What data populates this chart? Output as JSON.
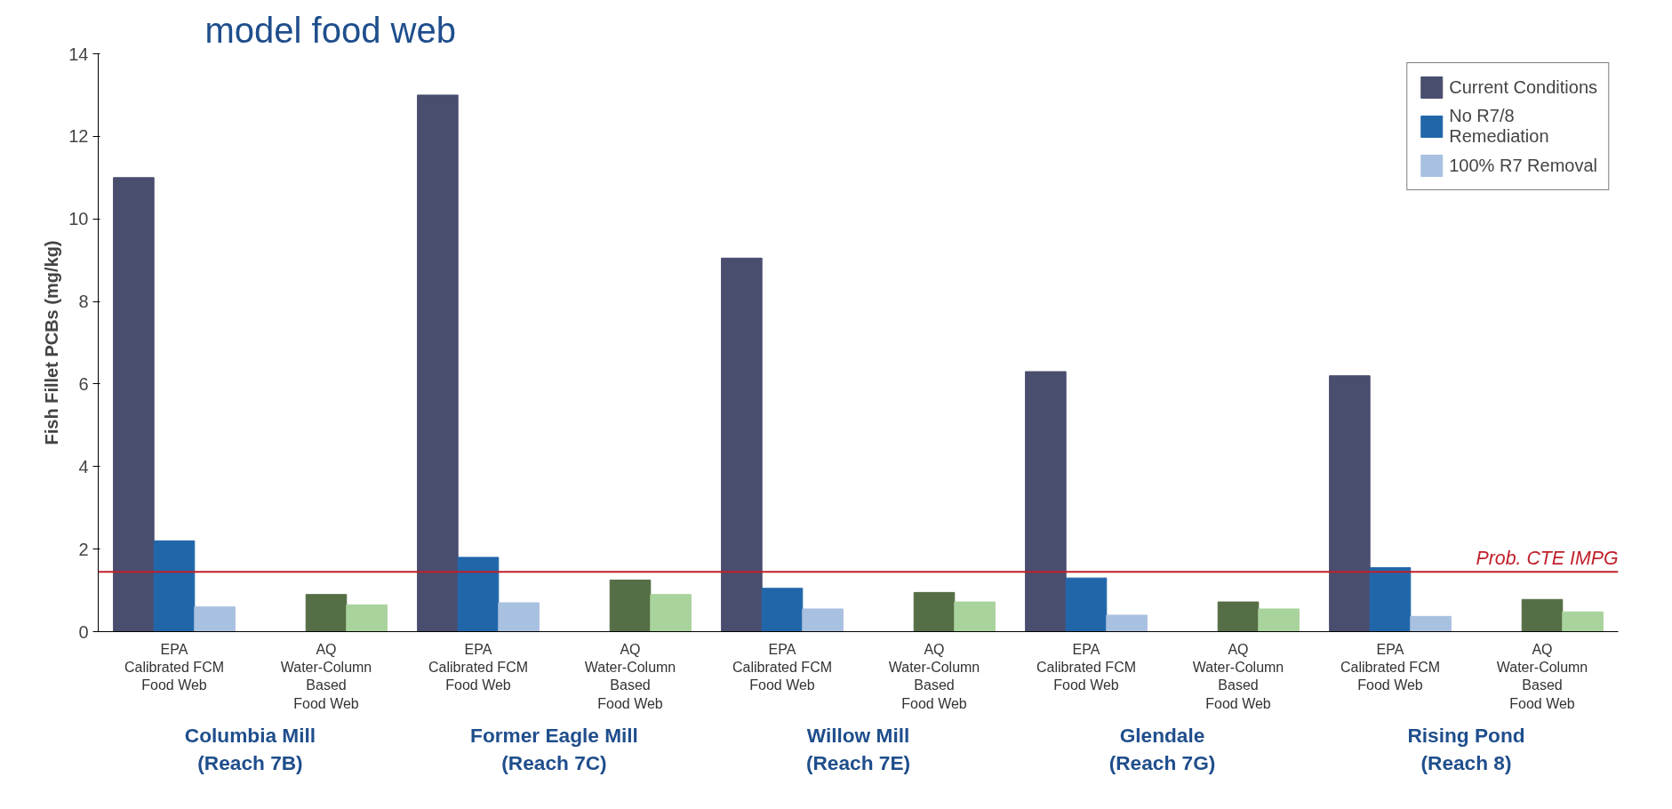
{
  "chart_data": {
    "type": "bar",
    "title": "model food web",
    "ylabel": "Fish Fillet PCBs (mg/kg)",
    "categories": [
      "EPA\nCalibrated FCM\nFood Web",
      "AQ\nWater-Column\nBased\nFood Web",
      "EPA\nCalibrated FCM\nFood Web",
      "AQ\nWater-Column\nBased\nFood Web",
      "EPA\nCalibrated FCM\nFood Web",
      "AQ\nWater-Column\nBased\nFood Web",
      "EPA\nCalibrated FCM\nFood Web",
      "AQ\nWater-Column\nBased\nFood Web",
      "EPA\nCalibrated FCM\nFood Web",
      "AQ\nWater-Column\nBased\nFood Web"
    ],
    "series": [
      {
        "name": "Current Conditions",
        "color": "#4a4e6e",
        "values": [
          11.0,
          null,
          13.0,
          null,
          9.05,
          null,
          6.3,
          null,
          6.2,
          null
        ]
      },
      {
        "name": "No R7/8\nRemediation",
        "colors": [
          "#2266aa",
          "#556e45",
          "#2266aa",
          "#556e45",
          "#2266aa",
          "#556e45",
          "#2266aa",
          "#556e45",
          "#2266aa",
          "#556e45"
        ],
        "values": [
          2.2,
          0.9,
          1.8,
          1.25,
          1.05,
          0.95,
          1.3,
          0.72,
          1.55,
          0.78
        ]
      },
      {
        "name": "100% R7 Removal",
        "colors": [
          "#a9c1e0",
          "#a8d39c",
          "#a9c1e0",
          "#a8d39c",
          "#a9c1e0",
          "#a8d39c",
          "#a9c1e0",
          "#a8d39c",
          "#a9c1e0",
          "#a8d39c"
        ],
        "values": [
          0.6,
          0.65,
          0.7,
          0.9,
          0.55,
          0.72,
          0.4,
          0.55,
          0.37,
          0.48
        ]
      }
    ],
    "ylim": [
      0,
      14
    ],
    "yticks": [
      0,
      2,
      4,
      6,
      8,
      10,
      12,
      14
    ],
    "grid": false,
    "legend": "top right",
    "ref_lines": [
      {
        "axis": "y",
        "value": 1.45,
        "label": "Prob. CTE IMPG",
        "color": "#c0202a"
      }
    ],
    "annotations": [
      "Columbia Mill\n(Reach 7B)",
      "Former Eagle Mill\n(Reach 7C)",
      "Willow Mill\n(Reach 7E)",
      "Glendale\n(Reach 7G)",
      "Rising Pond\n(Reach 8)"
    ]
  }
}
